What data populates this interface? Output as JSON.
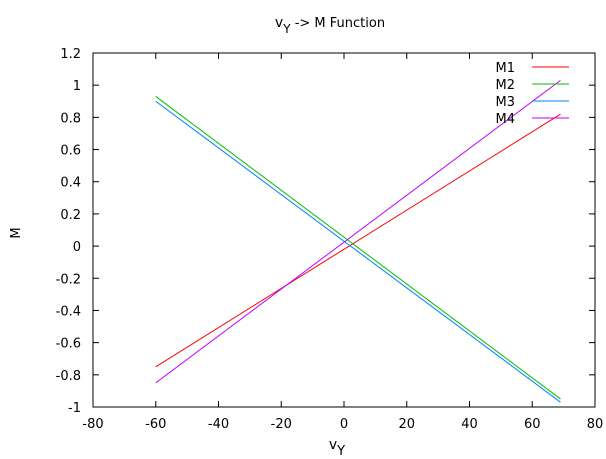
{
  "chart_data": {
    "type": "line",
    "title_main": "v",
    "title_sub": "Y",
    "title_rest": " -> M Function",
    "xlabel_main": "v",
    "xlabel_sub": "Y",
    "ylabel": "M",
    "xlim": [
      -80,
      80
    ],
    "ylim": [
      -1,
      1.2
    ],
    "xticks": [
      -80,
      -60,
      -40,
      -20,
      0,
      20,
      40,
      60,
      80
    ],
    "yticks": [
      -1,
      -0.8,
      -0.6,
      -0.4,
      -0.2,
      0,
      0.2,
      0.4,
      0.6,
      0.8,
      1,
      1.2
    ],
    "grid": false,
    "legend_position": "top-right",
    "series": [
      {
        "name": "M1",
        "color": "#ff0000",
        "x": [
          -60,
          69
        ],
        "y": [
          -0.75,
          0.82
        ]
      },
      {
        "name": "M2",
        "color": "#00c000",
        "x": [
          -60,
          69
        ],
        "y": [
          0.93,
          -0.95
        ]
      },
      {
        "name": "M3",
        "color": "#0080ff",
        "x": [
          -60,
          69
        ],
        "y": [
          0.9,
          -0.97
        ]
      },
      {
        "name": "M4",
        "color": "#c000ff",
        "x": [
          -60,
          69
        ],
        "y": [
          -0.85,
          1.03
        ]
      }
    ]
  }
}
